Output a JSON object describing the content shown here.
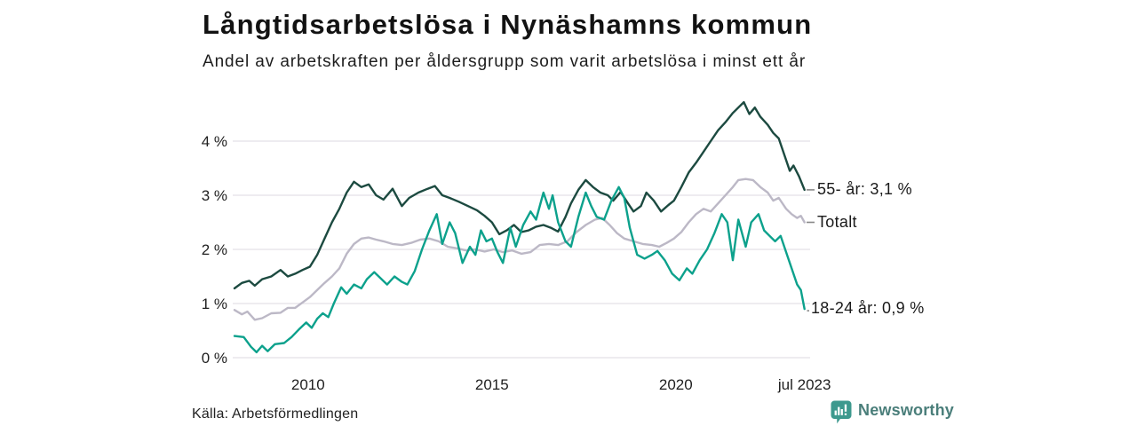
{
  "chart_data": {
    "type": "line",
    "title": "Långtidsarbetslösa i Nynäshamns kommun",
    "subtitle": "Andel av arbetskraften per åldersgrupp som varit arbetslösa i minst ett år",
    "grid": true,
    "legend_position": "right-end-labels",
    "x_axis": {
      "range": [
        2008,
        2023.58
      ],
      "ticks": [
        {
          "x": 2010,
          "label": "2010"
        },
        {
          "x": 2015,
          "label": "2015"
        },
        {
          "x": 2020,
          "label": "2020"
        },
        {
          "x": 2023.5,
          "label": "jul 2023"
        }
      ]
    },
    "y_axis": {
      "unit": "%",
      "range": [
        0,
        4.8
      ],
      "ticks": [
        {
          "y": 0,
          "label": "0 %"
        },
        {
          "y": 1,
          "label": "1 %"
        },
        {
          "y": 2,
          "label": "2 %"
        },
        {
          "y": 3,
          "label": "3 %"
        },
        {
          "y": 4,
          "label": "4 %"
        }
      ]
    },
    "series": [
      {
        "name": "Totalt",
        "color": "#bcb8c6",
        "end_label": "Totalt",
        "end_value_pct": 2.5,
        "leader": "dash",
        "points": [
          [
            2008.0,
            0.88
          ],
          [
            2008.2,
            0.8
          ],
          [
            2008.35,
            0.85
          ],
          [
            2008.55,
            0.7
          ],
          [
            2008.75,
            0.73
          ],
          [
            2009.0,
            0.82
          ],
          [
            2009.25,
            0.83
          ],
          [
            2009.45,
            0.92
          ],
          [
            2009.65,
            0.92
          ],
          [
            2009.85,
            1.02
          ],
          [
            2010.05,
            1.12
          ],
          [
            2010.25,
            1.25
          ],
          [
            2010.45,
            1.38
          ],
          [
            2010.65,
            1.5
          ],
          [
            2010.85,
            1.65
          ],
          [
            2011.05,
            1.92
          ],
          [
            2011.25,
            2.1
          ],
          [
            2011.45,
            2.2
          ],
          [
            2011.65,
            2.22
          ],
          [
            2011.85,
            2.18
          ],
          [
            2012.05,
            2.15
          ],
          [
            2012.3,
            2.1
          ],
          [
            2012.55,
            2.08
          ],
          [
            2012.8,
            2.12
          ],
          [
            2013.05,
            2.18
          ],
          [
            2013.3,
            2.2
          ],
          [
            2013.55,
            2.15
          ],
          [
            2013.8,
            2.05
          ],
          [
            2014.05,
            2.02
          ],
          [
            2014.3,
            1.98
          ],
          [
            2014.55,
            2.0
          ],
          [
            2014.8,
            1.96
          ],
          [
            2015.05,
            2.0
          ],
          [
            2015.3,
            1.95
          ],
          [
            2015.55,
            1.98
          ],
          [
            2015.8,
            1.92
          ],
          [
            2016.05,
            1.95
          ],
          [
            2016.3,
            2.08
          ],
          [
            2016.55,
            2.1
          ],
          [
            2016.8,
            2.08
          ],
          [
            2017.05,
            2.15
          ],
          [
            2017.3,
            2.32
          ],
          [
            2017.55,
            2.45
          ],
          [
            2017.8,
            2.55
          ],
          [
            2018.0,
            2.58
          ],
          [
            2018.2,
            2.45
          ],
          [
            2018.4,
            2.3
          ],
          [
            2018.6,
            2.2
          ],
          [
            2018.85,
            2.15
          ],
          [
            2019.1,
            2.1
          ],
          [
            2019.35,
            2.08
          ],
          [
            2019.55,
            2.05
          ],
          [
            2019.75,
            2.12
          ],
          [
            2019.95,
            2.2
          ],
          [
            2020.15,
            2.32
          ],
          [
            2020.35,
            2.5
          ],
          [
            2020.55,
            2.65
          ],
          [
            2020.75,
            2.75
          ],
          [
            2020.95,
            2.7
          ],
          [
            2021.15,
            2.85
          ],
          [
            2021.35,
            3.0
          ],
          [
            2021.55,
            3.15
          ],
          [
            2021.7,
            3.28
          ],
          [
            2021.9,
            3.3
          ],
          [
            2022.1,
            3.28
          ],
          [
            2022.3,
            3.15
          ],
          [
            2022.5,
            3.05
          ],
          [
            2022.65,
            2.9
          ],
          [
            2022.8,
            2.95
          ],
          [
            2023.0,
            2.75
          ],
          [
            2023.15,
            2.65
          ],
          [
            2023.3,
            2.58
          ],
          [
            2023.4,
            2.62
          ],
          [
            2023.5,
            2.5
          ]
        ]
      },
      {
        "name": "55- år",
        "color": "#1c4a40",
        "end_label": "55- år: 3,1 %",
        "end_value_pct": 3.1,
        "leader": "dash",
        "points": [
          [
            2008.0,
            1.28
          ],
          [
            2008.2,
            1.38
          ],
          [
            2008.4,
            1.42
          ],
          [
            2008.55,
            1.33
          ],
          [
            2008.75,
            1.45
          ],
          [
            2009.0,
            1.5
          ],
          [
            2009.25,
            1.62
          ],
          [
            2009.45,
            1.5
          ],
          [
            2009.65,
            1.55
          ],
          [
            2009.85,
            1.62
          ],
          [
            2010.05,
            1.68
          ],
          [
            2010.25,
            1.9
          ],
          [
            2010.45,
            2.2
          ],
          [
            2010.65,
            2.5
          ],
          [
            2010.85,
            2.75
          ],
          [
            2011.05,
            3.05
          ],
          [
            2011.25,
            3.25
          ],
          [
            2011.45,
            3.15
          ],
          [
            2011.65,
            3.2
          ],
          [
            2011.85,
            3.0
          ],
          [
            2012.05,
            2.92
          ],
          [
            2012.3,
            3.12
          ],
          [
            2012.55,
            2.8
          ],
          [
            2012.75,
            2.95
          ],
          [
            2013.0,
            3.05
          ],
          [
            2013.25,
            3.12
          ],
          [
            2013.45,
            3.17
          ],
          [
            2013.65,
            3.0
          ],
          [
            2013.85,
            2.95
          ],
          [
            2014.1,
            2.88
          ],
          [
            2014.35,
            2.8
          ],
          [
            2014.6,
            2.72
          ],
          [
            2014.8,
            2.62
          ],
          [
            2015.0,
            2.5
          ],
          [
            2015.2,
            2.28
          ],
          [
            2015.4,
            2.35
          ],
          [
            2015.6,
            2.45
          ],
          [
            2015.8,
            2.32
          ],
          [
            2016.0,
            2.35
          ],
          [
            2016.2,
            2.42
          ],
          [
            2016.4,
            2.45
          ],
          [
            2016.6,
            2.4
          ],
          [
            2016.8,
            2.33
          ],
          [
            2017.0,
            2.6
          ],
          [
            2017.15,
            2.85
          ],
          [
            2017.35,
            3.1
          ],
          [
            2017.55,
            3.28
          ],
          [
            2017.75,
            3.15
          ],
          [
            2017.95,
            3.05
          ],
          [
            2018.15,
            3.0
          ],
          [
            2018.3,
            2.9
          ],
          [
            2018.5,
            3.06
          ],
          [
            2018.7,
            2.85
          ],
          [
            2018.85,
            2.7
          ],
          [
            2019.05,
            2.8
          ],
          [
            2019.2,
            3.05
          ],
          [
            2019.4,
            2.9
          ],
          [
            2019.6,
            2.7
          ],
          [
            2019.8,
            2.82
          ],
          [
            2019.95,
            2.9
          ],
          [
            2020.15,
            3.15
          ],
          [
            2020.35,
            3.42
          ],
          [
            2020.55,
            3.6
          ],
          [
            2020.75,
            3.8
          ],
          [
            2020.95,
            4.0
          ],
          [
            2021.15,
            4.2
          ],
          [
            2021.35,
            4.35
          ],
          [
            2021.55,
            4.52
          ],
          [
            2021.7,
            4.62
          ],
          [
            2021.85,
            4.72
          ],
          [
            2022.0,
            4.5
          ],
          [
            2022.15,
            4.62
          ],
          [
            2022.3,
            4.45
          ],
          [
            2022.5,
            4.3
          ],
          [
            2022.65,
            4.15
          ],
          [
            2022.8,
            4.05
          ],
          [
            2022.95,
            3.75
          ],
          [
            2023.1,
            3.45
          ],
          [
            2023.2,
            3.55
          ],
          [
            2023.35,
            3.35
          ],
          [
            2023.5,
            3.1
          ]
        ]
      },
      {
        "name": "18-24 år",
        "color": "#0ca18c",
        "end_label": "18-24 år: 0,9 %",
        "end_value_pct": 0.9,
        "leader": "dot",
        "points": [
          [
            2008.0,
            0.4
          ],
          [
            2008.25,
            0.38
          ],
          [
            2008.45,
            0.2
          ],
          [
            2008.6,
            0.1
          ],
          [
            2008.75,
            0.22
          ],
          [
            2008.9,
            0.12
          ],
          [
            2009.1,
            0.25
          ],
          [
            2009.35,
            0.27
          ],
          [
            2009.55,
            0.38
          ],
          [
            2009.75,
            0.52
          ],
          [
            2009.95,
            0.65
          ],
          [
            2010.1,
            0.55
          ],
          [
            2010.25,
            0.72
          ],
          [
            2010.4,
            0.82
          ],
          [
            2010.55,
            0.75
          ],
          [
            2010.7,
            1.0
          ],
          [
            2010.9,
            1.3
          ],
          [
            2011.05,
            1.18
          ],
          [
            2011.25,
            1.35
          ],
          [
            2011.45,
            1.28
          ],
          [
            2011.6,
            1.45
          ],
          [
            2011.8,
            1.58
          ],
          [
            2012.0,
            1.45
          ],
          [
            2012.15,
            1.35
          ],
          [
            2012.35,
            1.5
          ],
          [
            2012.55,
            1.4
          ],
          [
            2012.7,
            1.35
          ],
          [
            2012.9,
            1.6
          ],
          [
            2013.1,
            2.0
          ],
          [
            2013.3,
            2.35
          ],
          [
            2013.5,
            2.65
          ],
          [
            2013.65,
            2.1
          ],
          [
            2013.85,
            2.5
          ],
          [
            2014.0,
            2.3
          ],
          [
            2014.2,
            1.75
          ],
          [
            2014.4,
            2.05
          ],
          [
            2014.55,
            1.9
          ],
          [
            2014.7,
            2.35
          ],
          [
            2014.85,
            2.15
          ],
          [
            2015.0,
            2.2
          ],
          [
            2015.15,
            1.95
          ],
          [
            2015.3,
            1.75
          ],
          [
            2015.5,
            2.4
          ],
          [
            2015.65,
            2.05
          ],
          [
            2015.85,
            2.45
          ],
          [
            2016.05,
            2.7
          ],
          [
            2016.2,
            2.55
          ],
          [
            2016.4,
            3.05
          ],
          [
            2016.55,
            2.75
          ],
          [
            2016.65,
            3.0
          ],
          [
            2016.8,
            2.5
          ],
          [
            2017.0,
            2.15
          ],
          [
            2017.15,
            2.05
          ],
          [
            2017.35,
            2.6
          ],
          [
            2017.55,
            3.05
          ],
          [
            2017.7,
            2.8
          ],
          [
            2017.85,
            2.6
          ],
          [
            2018.05,
            2.55
          ],
          [
            2018.25,
            2.9
          ],
          [
            2018.45,
            3.15
          ],
          [
            2018.6,
            2.95
          ],
          [
            2018.75,
            2.4
          ],
          [
            2018.95,
            1.9
          ],
          [
            2019.15,
            1.83
          ],
          [
            2019.35,
            1.9
          ],
          [
            2019.5,
            1.97
          ],
          [
            2019.7,
            1.8
          ],
          [
            2019.9,
            1.55
          ],
          [
            2020.1,
            1.43
          ],
          [
            2020.3,
            1.65
          ],
          [
            2020.45,
            1.55
          ],
          [
            2020.65,
            1.8
          ],
          [
            2020.85,
            2.0
          ],
          [
            2021.05,
            2.3
          ],
          [
            2021.25,
            2.65
          ],
          [
            2021.4,
            2.5
          ],
          [
            2021.55,
            1.8
          ],
          [
            2021.7,
            2.55
          ],
          [
            2021.9,
            2.05
          ],
          [
            2022.05,
            2.5
          ],
          [
            2022.25,
            2.65
          ],
          [
            2022.4,
            2.35
          ],
          [
            2022.55,
            2.25
          ],
          [
            2022.7,
            2.15
          ],
          [
            2022.85,
            2.25
          ],
          [
            2023.0,
            1.95
          ],
          [
            2023.15,
            1.65
          ],
          [
            2023.3,
            1.35
          ],
          [
            2023.4,
            1.25
          ],
          [
            2023.5,
            0.9
          ]
        ]
      }
    ]
  },
  "source": "Källa: Arbetsförmedlingen",
  "brand": {
    "name": "Newsworthy",
    "icon": "newsworthy-chart-bubble-icon",
    "colors": {
      "icon": "#3d998e",
      "text": "#4a7e7a"
    }
  },
  "colors": {
    "grid": "#e3e1e7",
    "tick_text": "#1f1f1f",
    "leader": "#888888",
    "background": "#ffffff"
  }
}
